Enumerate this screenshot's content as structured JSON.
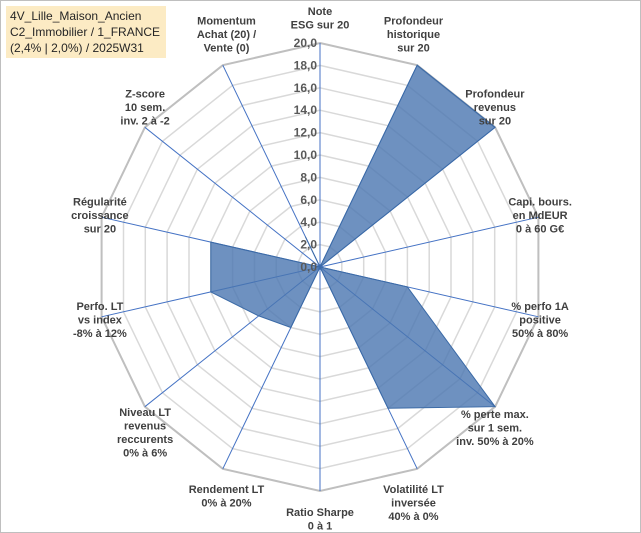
{
  "title_box": {
    "line1": "4V_Lille_Maison_Ancien",
    "line2": "C2_Immobilier / 1_FRANCE",
    "line3": "(2,4% | 2,0%) / 2025W31"
  },
  "chart_data": {
    "type": "radar",
    "rmin": 0,
    "rmax": 20,
    "tick_step": 2,
    "tick_labels": [
      "0,0",
      "2,0",
      "4,0",
      "6,0",
      "8,0",
      "10,0",
      "12,0",
      "14,0",
      "16,0",
      "18,0",
      "20,0"
    ],
    "axes": [
      "Note\nESG sur 20",
      "Profondeur\nhistorique\nsur 20",
      "Profondeur\nrevenus\nsur 20",
      "Capi. bours.\nen MdEUR\n0 à 60 G€",
      "% perfo 1A\npositive\n50% à 80%",
      "% perte max.\nsur 1 sem.\ninv. 50% à 20%",
      "Volatilité LT\ninversée\n40% à 0%",
      "Ratio Sharpe\n0 à 1",
      "Rendement LT\n0% à 20%",
      "Niveau LT\nrevenus\nreccurents\n0% à 6%",
      "Perfo. LT\nvs index\n-8% à 12%",
      "Régularité\ncroissance\nsur 20",
      "Z-score\n10 sem.\ninv. 2 à -2",
      "Momentum\nAchat (20) /\nVente (0)"
    ],
    "values": [
      0,
      20,
      20,
      0,
      8,
      20,
      14,
      0,
      6,
      7,
      10,
      10,
      0,
      3
    ],
    "grid": true,
    "legend": "none",
    "fill_color": "#4a76b0",
    "fill_opacity": 0.8,
    "grid_color": "#d9d9d9",
    "spoke_color": "#4472c4"
  }
}
